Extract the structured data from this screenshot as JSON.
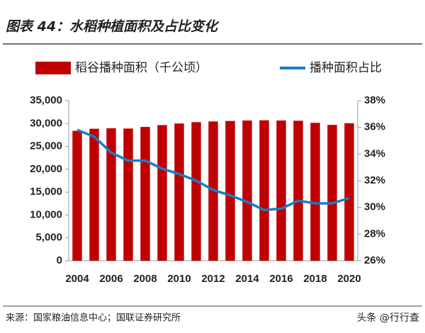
{
  "chart_data": {
    "type": "bar-line",
    "title": "图表 44：水稻种植面积及占比变化",
    "source": "来源：国家粮油信息中心；国联证券研究所",
    "watermark": "头条 @行行查",
    "categories": [
      "2004",
      null,
      "2006",
      null,
      "2008",
      null,
      "2010",
      null,
      "2012",
      null,
      "2014",
      null,
      "2016",
      null,
      "2018",
      null,
      "2020"
    ],
    "series": [
      {
        "name": "稻谷播种面积（千公顷）",
        "type": "bar",
        "color": "#c00000",
        "values": [
          28400,
          28850,
          28950,
          28900,
          29250,
          29650,
          30000,
          30300,
          30450,
          30550,
          30650,
          30700,
          30650,
          30600,
          30150,
          29700,
          30050
        ]
      },
      {
        "name": "播种面积占比",
        "type": "line",
        "axis": "y2",
        "color": "#1a7cc6",
        "values": [
          35.8,
          35.3,
          34.1,
          33.5,
          33.5,
          32.9,
          32.5,
          32.0,
          31.3,
          30.9,
          30.4,
          29.8,
          29.9,
          30.5,
          30.3,
          30.3,
          30.7
        ]
      }
    ],
    "ylim": [
      0,
      35000
    ],
    "yticks": [
      0,
      {
        "value": 5000,
        "label": "5,000"
      },
      {
        "value": 10000,
        "label": "10,000"
      },
      {
        "value": 15000,
        "label": "15,000"
      },
      {
        "value": 20000,
        "label": "20,000"
      },
      {
        "value": 25000,
        "label": "25,000"
      },
      {
        "value": 30000,
        "label": "30,000"
      },
      {
        "value": 35000,
        "label": "35,000"
      }
    ],
    "y2lim": [
      26,
      38
    ],
    "y2ticks": [
      {
        "value": 26,
        "label": "26%"
      },
      {
        "value": 28,
        "label": "28%"
      },
      {
        "value": 30,
        "label": "30%"
      },
      {
        "value": 32,
        "label": "32%"
      },
      {
        "value": 34,
        "label": "34%"
      },
      {
        "value": 36,
        "label": "36%"
      },
      {
        "value": 38,
        "label": "38%"
      }
    ],
    "grid": false,
    "legend": "top"
  }
}
